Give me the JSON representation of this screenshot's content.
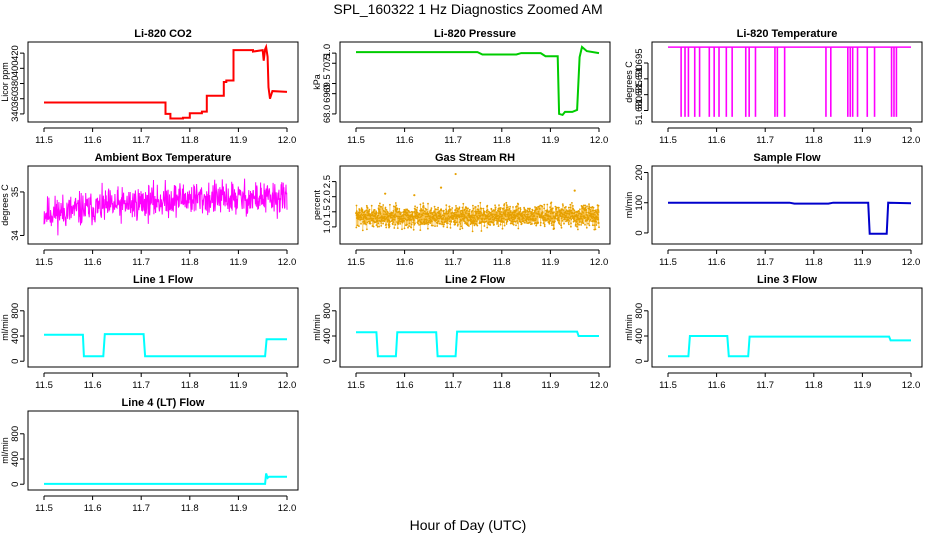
{
  "page": {
    "title": "SPL_160322  1 Hz Diagnostics Zoomed AM",
    "xlabel": "Hour of Day (UTC)"
  },
  "chart_data": [
    {
      "type": "line",
      "title": "Li-820 CO2",
      "ylabel": "Licor ppm",
      "color": "#ff0000",
      "xlim": [
        11.5,
        12.0
      ],
      "xticks": [
        11.5,
        11.6,
        11.7,
        11.8,
        11.9,
        12.0
      ],
      "ylim": [
        332,
        432
      ],
      "yticks": [
        340,
        360,
        380,
        400,
        420
      ],
      "series": [
        {
          "x": [
            11.5,
            11.75,
            11.75,
            11.76,
            11.76,
            11.786,
            11.786,
            11.8,
            11.8,
            11.825,
            11.825,
            11.835,
            11.835,
            11.87,
            11.87,
            11.875,
            11.875,
            11.89,
            11.89,
            11.93,
            11.93,
            11.95,
            11.952,
            11.955,
            11.957,
            11.96,
            11.962,
            11.965,
            11.97,
            12.0
          ],
          "y": [
            355,
            355,
            340,
            340,
            334,
            334,
            335,
            335,
            341,
            341,
            343,
            343,
            364,
            364,
            382,
            382,
            384,
            384,
            424,
            424,
            422,
            424,
            410,
            425,
            428,
            415,
            375,
            360,
            370,
            369
          ]
        }
      ]
    },
    {
      "type": "line",
      "title": "Li-820 Pressure",
      "ylabel": "kPa",
      "color": "#00cc00",
      "xlim": [
        11.5,
        12.0
      ],
      "xticks": [
        11.5,
        11.6,
        11.7,
        11.8,
        11.9,
        12.0
      ],
      "ylim": [
        67.7,
        71.45
      ],
      "yticks": [
        68.0,
        69.0,
        69.5,
        70.5,
        71.0
      ],
      "series": [
        {
          "x": [
            11.5,
            11.75,
            11.76,
            11.83,
            11.84,
            11.88,
            11.89,
            11.915,
            11.918,
            11.925,
            11.93,
            11.945,
            11.955,
            11.96,
            11.965,
            11.975,
            12.0
          ],
          "y": [
            71.05,
            71.05,
            70.93,
            70.93,
            71.0,
            71.0,
            70.85,
            70.85,
            68.0,
            67.95,
            68.1,
            68.1,
            68.2,
            70.8,
            71.3,
            71.1,
            71.0
          ]
        }
      ]
    },
    {
      "type": "line",
      "title": "Li-820 Temperature",
      "ylabel": "degrees C",
      "color": "#ff00ff",
      "xlim": [
        11.5,
        12.0
      ],
      "xticks": [
        11.5,
        11.6,
        11.7,
        11.8,
        11.9,
        12.0
      ],
      "ylim": [
        51.677,
        51.701
      ],
      "yticks": [
        51.68,
        51.685,
        51.69,
        51.695
      ],
      "baseline": 51.7,
      "drop_to": 51.678,
      "drops": [
        11.527,
        11.535,
        11.542,
        11.555,
        11.565,
        11.585,
        11.595,
        11.605,
        11.62,
        11.632,
        11.66,
        11.667,
        11.68,
        11.72,
        11.725,
        11.74,
        11.825,
        11.835,
        11.87,
        11.875,
        11.88,
        11.89,
        11.91,
        11.925,
        11.96,
        11.965,
        11.97
      ]
    },
    {
      "type": "line",
      "title": "Ambient Box Temperature",
      "ylabel": "degrees C",
      "color": "#ff00ff",
      "xlim": [
        11.5,
        12.0
      ],
      "xticks": [
        11.5,
        11.6,
        11.7,
        11.8,
        11.9,
        12.0
      ],
      "ylim": [
        33.85,
        35.55
      ],
      "yticks": [
        34.0,
        35.0
      ],
      "noise": {
        "seed": 11,
        "count": 700,
        "mean_start": 34.5,
        "mean_end": 34.85,
        "spread": 0.3
      }
    },
    {
      "type": "scatter",
      "title": "Gas Stream RH",
      "ylabel": "percent",
      "color": "#e6a000",
      "xlim": [
        11.5,
        12.0
      ],
      "xticks": [
        11.5,
        11.6,
        11.7,
        11.8,
        11.9,
        12.0
      ],
      "ylim": [
        0.5,
        2.95
      ],
      "yticks": [
        1.0,
        1.5,
        2.0,
        2.5
      ],
      "noise": {
        "seed": 7,
        "count": 1600,
        "mean_start": 1.35,
        "mean_end": 1.35,
        "spread": 0.28
      },
      "outliers": [
        [
          11.705,
          2.75
        ],
        [
          11.675,
          2.3
        ],
        [
          11.62,
          2.05
        ],
        [
          11.56,
          2.1
        ],
        [
          11.95,
          2.2
        ]
      ]
    },
    {
      "type": "line",
      "title": "Sample Flow",
      "ylabel": "ml/min",
      "color": "#0000cc",
      "xlim": [
        11.5,
        12.0
      ],
      "xticks": [
        11.5,
        11.6,
        11.7,
        11.8,
        11.9,
        12.0
      ],
      "ylim": [
        -30,
        215
      ],
      "yticks": [
        0,
        100,
        200
      ],
      "series": [
        {
          "x": [
            11.5,
            11.75,
            11.76,
            11.83,
            11.84,
            11.912,
            11.915,
            11.95,
            11.953,
            12.0
          ],
          "y": [
            100,
            100,
            97,
            97,
            100,
            100,
            -3,
            -3,
            100,
            98
          ]
        }
      ]
    },
    {
      "type": "line",
      "title": "Line 1 Flow",
      "ylabel": "ml/min",
      "color": "#00ffff",
      "xlim": [
        11.5,
        12.0
      ],
      "xticks": [
        11.5,
        11.6,
        11.7,
        11.8,
        11.9,
        12.0
      ],
      "ylim": [
        -60,
        1130
      ],
      "yticks": [
        0,
        400,
        800
      ],
      "series": [
        {
          "x": [
            11.5,
            11.58,
            11.582,
            11.622,
            11.625,
            11.705,
            11.708,
            11.955,
            11.958,
            12.0
          ],
          "y": [
            420,
            420,
            80,
            80,
            430,
            430,
            80,
            80,
            350,
            350
          ]
        }
      ]
    },
    {
      "type": "line",
      "title": "Line 2 Flow",
      "ylabel": "ml/min",
      "color": "#00ffff",
      "xlim": [
        11.5,
        12.0
      ],
      "xticks": [
        11.5,
        11.6,
        11.7,
        11.8,
        11.9,
        12.0
      ],
      "ylim": [
        -60,
        1130
      ],
      "yticks": [
        0,
        400,
        800
      ],
      "series": [
        {
          "x": [
            11.5,
            11.542,
            11.545,
            11.582,
            11.585,
            11.665,
            11.668,
            11.705,
            11.708,
            11.955,
            11.958,
            12.0
          ],
          "y": [
            460,
            460,
            80,
            80,
            460,
            460,
            80,
            80,
            470,
            470,
            400,
            400
          ]
        }
      ]
    },
    {
      "type": "line",
      "title": "Line 3 Flow",
      "ylabel": "ml/min",
      "color": "#00ffff",
      "xlim": [
        11.5,
        12.0
      ],
      "xticks": [
        11.5,
        11.6,
        11.7,
        11.8,
        11.9,
        12.0
      ],
      "ylim": [
        -60,
        1130
      ],
      "yticks": [
        0,
        400,
        800
      ],
      "series": [
        {
          "x": [
            11.5,
            11.542,
            11.545,
            11.622,
            11.625,
            11.665,
            11.668,
            11.955,
            11.958,
            12.0
          ],
          "y": [
            80,
            80,
            400,
            400,
            80,
            80,
            390,
            390,
            330,
            330
          ]
        }
      ]
    },
    {
      "type": "line",
      "title": "Line 4 (LT) Flow",
      "ylabel": "ml/min",
      "color": "#00ffff",
      "xlim": [
        11.5,
        12.0
      ],
      "xticks": [
        11.5,
        11.6,
        11.7,
        11.8,
        11.9,
        12.0
      ],
      "ylim": [
        -60,
        1130
      ],
      "yticks": [
        0,
        400,
        800
      ],
      "series": [
        {
          "x": [
            11.5,
            11.955,
            11.957,
            11.96,
            11.963,
            12.0
          ],
          "y": [
            5,
            5,
            170,
            100,
            120,
            120
          ]
        }
      ]
    }
  ]
}
